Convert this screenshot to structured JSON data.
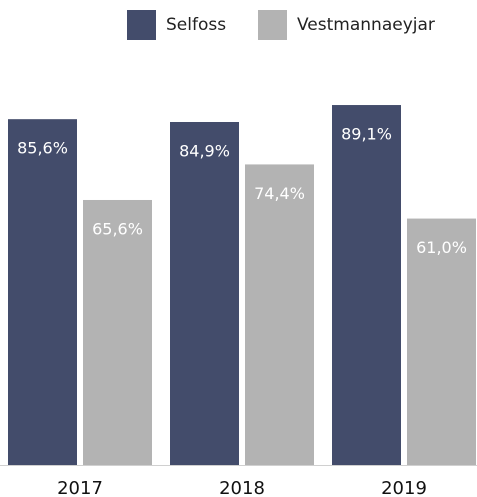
{
  "chart_data": {
    "type": "bar",
    "categories": [
      "2017",
      "2018",
      "2019"
    ],
    "series": [
      {
        "name": "Selfoss",
        "color": "#434c6b",
        "values": [
          85.6,
          84.9,
          89.1
        ],
        "value_labels": [
          "85,6%",
          "84,9%",
          "89,1%"
        ]
      },
      {
        "name": "Vestmannaeyjar",
        "color": "#b3b3b3",
        "values": [
          65.6,
          74.4,
          61.0
        ],
        "value_labels": [
          "65,6%",
          "74,4%",
          "61,0%"
        ]
      }
    ]
  }
}
